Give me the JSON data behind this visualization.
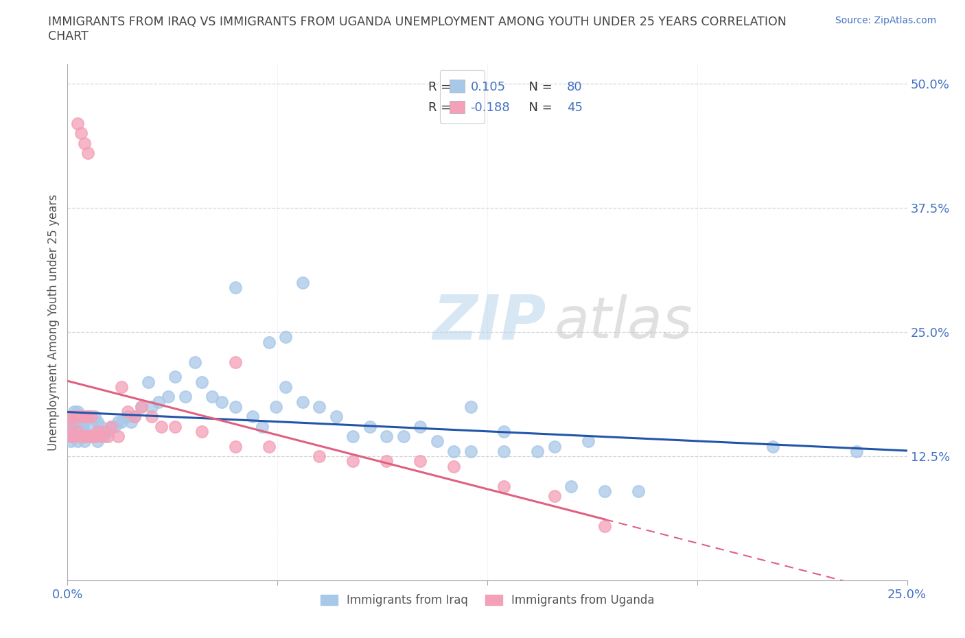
{
  "title": "IMMIGRANTS FROM IRAQ VS IMMIGRANTS FROM UGANDA UNEMPLOYMENT AMONG YOUTH UNDER 25 YEARS CORRELATION\nCHART",
  "source": "Source: ZipAtlas.com",
  "ylabel": "Unemployment Among Youth under 25 years",
  "xlim": [
    0.0,
    0.25
  ],
  "ylim": [
    0.0,
    0.52
  ],
  "ytick_vals": [
    0.0,
    0.125,
    0.25,
    0.375,
    0.5
  ],
  "ytick_labels": [
    "",
    "12.5%",
    "25.0%",
    "37.5%",
    "50.0%"
  ],
  "xtick_vals": [
    0.0,
    0.0625,
    0.125,
    0.1875,
    0.25
  ],
  "xtick_labels": [
    "0.0%",
    "",
    "",
    "",
    "25.0%"
  ],
  "color_iraq": "#A8C8E8",
  "color_uganda": "#F4A0B8",
  "trendline_iraq_color": "#2255AA",
  "trendline_uganda_color": "#E06080",
  "background_color": "#FFFFFF",
  "grid_color": "#CCCCCC",
  "title_color": "#444444",
  "axis_label_color": "#555555",
  "tick_label_color": "#4472C4",
  "watermark_zip_color": "#B8D4EC",
  "watermark_atlas_color": "#C8C8C8",
  "legend_label_iraq": "Immigrants from Iraq",
  "legend_label_uganda": "Immigrants from Uganda",
  "iraq_x": [
    0.001,
    0.001,
    0.001,
    0.001,
    0.001,
    0.002,
    0.002,
    0.002,
    0.002,
    0.003,
    0.003,
    0.003,
    0.003,
    0.004,
    0.004,
    0.004,
    0.005,
    0.005,
    0.005,
    0.006,
    0.006,
    0.007,
    0.007,
    0.008,
    0.008,
    0.009,
    0.009,
    0.01,
    0.01,
    0.011,
    0.012,
    0.013,
    0.014,
    0.015,
    0.016,
    0.018,
    0.019,
    0.02,
    0.022,
    0.024,
    0.025,
    0.027,
    0.03,
    0.032,
    0.035,
    0.038,
    0.04,
    0.043,
    0.046,
    0.05,
    0.055,
    0.058,
    0.062,
    0.065,
    0.07,
    0.075,
    0.08,
    0.085,
    0.09,
    0.095,
    0.1,
    0.105,
    0.11,
    0.115,
    0.12,
    0.13,
    0.14,
    0.15,
    0.16,
    0.17,
    0.05,
    0.06,
    0.065,
    0.07,
    0.12,
    0.13,
    0.145,
    0.155,
    0.21,
    0.235
  ],
  "iraq_y": [
    0.14,
    0.145,
    0.15,
    0.16,
    0.155,
    0.145,
    0.155,
    0.165,
    0.17,
    0.14,
    0.15,
    0.16,
    0.17,
    0.145,
    0.155,
    0.165,
    0.14,
    0.15,
    0.16,
    0.145,
    0.165,
    0.145,
    0.155,
    0.145,
    0.165,
    0.14,
    0.16,
    0.145,
    0.155,
    0.145,
    0.15,
    0.155,
    0.155,
    0.16,
    0.16,
    0.165,
    0.16,
    0.165,
    0.175,
    0.2,
    0.175,
    0.18,
    0.185,
    0.205,
    0.185,
    0.22,
    0.2,
    0.185,
    0.18,
    0.175,
    0.165,
    0.155,
    0.175,
    0.195,
    0.18,
    0.175,
    0.165,
    0.145,
    0.155,
    0.145,
    0.145,
    0.155,
    0.14,
    0.13,
    0.13,
    0.13,
    0.13,
    0.095,
    0.09,
    0.09,
    0.295,
    0.24,
    0.245,
    0.3,
    0.175,
    0.15,
    0.135,
    0.14,
    0.135,
    0.13
  ],
  "uganda_x": [
    0.001,
    0.001,
    0.001,
    0.002,
    0.002,
    0.003,
    0.003,
    0.004,
    0.004,
    0.005,
    0.005,
    0.006,
    0.006,
    0.007,
    0.007,
    0.008,
    0.009,
    0.01,
    0.011,
    0.012,
    0.013,
    0.015,
    0.016,
    0.018,
    0.02,
    0.022,
    0.025,
    0.028,
    0.032,
    0.04,
    0.05,
    0.06,
    0.075,
    0.085,
    0.095,
    0.105,
    0.115,
    0.13,
    0.145,
    0.16,
    0.003,
    0.004,
    0.005,
    0.006,
    0.05
  ],
  "uganda_y": [
    0.145,
    0.155,
    0.165,
    0.145,
    0.165,
    0.15,
    0.165,
    0.145,
    0.165,
    0.145,
    0.165,
    0.145,
    0.165,
    0.145,
    0.165,
    0.145,
    0.15,
    0.145,
    0.15,
    0.145,
    0.155,
    0.145,
    0.195,
    0.17,
    0.165,
    0.175,
    0.165,
    0.155,
    0.155,
    0.15,
    0.135,
    0.135,
    0.125,
    0.12,
    0.12,
    0.12,
    0.115,
    0.095,
    0.085,
    0.055,
    0.46,
    0.45,
    0.44,
    0.43,
    0.22
  ]
}
